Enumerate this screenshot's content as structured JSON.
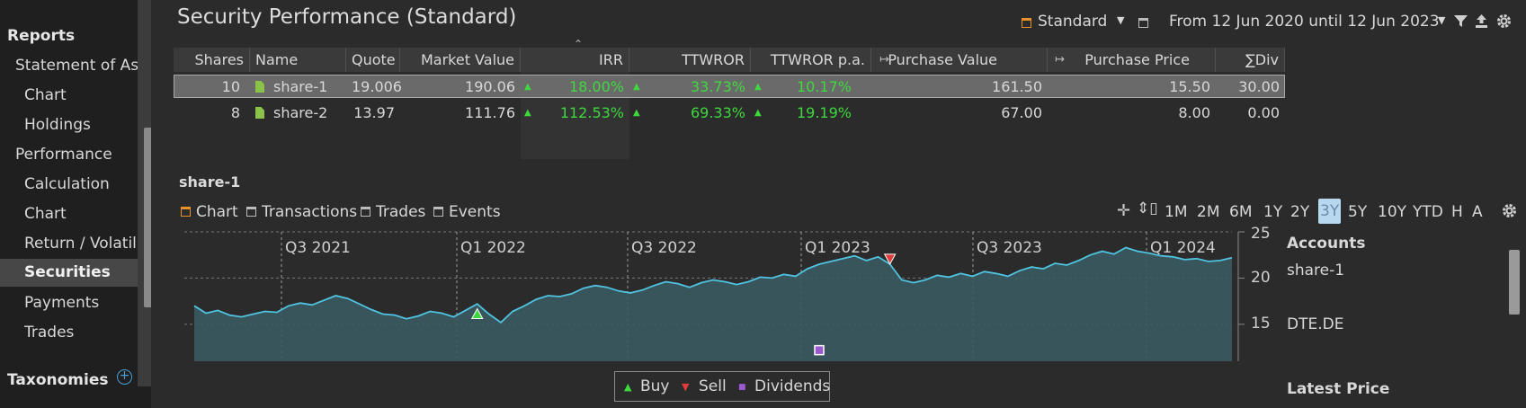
{
  "sidebar": {
    "sections": [
      {
        "label": "Reports"
      },
      {
        "label": "Taxonomies"
      }
    ],
    "items": [
      {
        "label": "Statement of Assets"
      },
      {
        "label": "Chart"
      },
      {
        "label": "Holdings"
      },
      {
        "label": "Performance"
      },
      {
        "label": "Calculation"
      },
      {
        "label": "Chart"
      },
      {
        "label": "Return / Volatility"
      },
      {
        "label": "Securities"
      },
      {
        "label": "Payments"
      },
      {
        "label": "Trades"
      }
    ],
    "add_icon": "+"
  },
  "header": {
    "title": "Security Performance (Standard)",
    "view_name": "Standard",
    "date_range": "From 12 Jun 2020 until 12 Jun 2023"
  },
  "table": {
    "columns": [
      "Shares",
      "Name",
      "Quote",
      "Market Value",
      "IRR",
      "TTWROR",
      "TTWROR p.a.",
      "Purchase Value",
      "Purchase Price",
      "∑Div"
    ],
    "rows": [
      {
        "shares": "10",
        "name": "share-1",
        "quote": "19.006",
        "market_value": "190.06",
        "irr": "18.00%",
        "ttwror": "33.73%",
        "ttwror_pa": "10.17%",
        "purchase_value": "161.50",
        "purchase_price": "15.50",
        "div": "30.00"
      },
      {
        "shares": "8",
        "name": "share-2",
        "quote": "13.97",
        "market_value": "111.76",
        "irr": "112.53%",
        "ttwror": "69.33%",
        "ttwror_pa": "19.19%",
        "purchase_value": "67.00",
        "purchase_price": "8.00",
        "div": "0.00"
      }
    ]
  },
  "detail": {
    "title": "share-1",
    "tabs": [
      "Chart",
      "Transactions",
      "Trades",
      "Events"
    ],
    "periods": [
      "1M",
      "2M",
      "6M",
      "1Y",
      "2Y",
      "3Y",
      "5Y",
      "10Y",
      "YTD",
      "H",
      "A"
    ],
    "active_period": "3Y",
    "side_labels": {
      "accounts": "Accounts",
      "share": "share-1",
      "security": "DTE.DE",
      "latest_price": "Latest Price"
    }
  },
  "chart_data": {
    "type": "area",
    "x_labels": [
      "Q3 2021",
      "Q1 2022",
      "Q3 2022",
      "Q1 2023",
      "Q3 2023",
      "Q1 2024"
    ],
    "y_ticks": [
      25,
      20,
      15
    ],
    "ylim": [
      11,
      25
    ],
    "grid": true,
    "line_color": "#4fc3e0",
    "fill_color": "#3a5a60",
    "values": [
      17.0,
      16.2,
      16.5,
      16.0,
      15.8,
      16.1,
      16.4,
      16.3,
      17.0,
      17.3,
      17.1,
      17.6,
      18.1,
      17.8,
      17.2,
      16.6,
      16.1,
      16.0,
      15.6,
      15.9,
      16.4,
      16.2,
      15.8,
      16.5,
      17.2,
      16.1,
      15.2,
      16.4,
      17.0,
      17.7,
      18.1,
      18.0,
      18.3,
      18.9,
      19.2,
      19.0,
      18.6,
      18.4,
      18.7,
      19.2,
      19.6,
      19.4,
      19.0,
      19.5,
      19.8,
      19.6,
      19.3,
      19.6,
      20.1,
      20.0,
      20.4,
      20.2,
      21.0,
      21.5,
      21.8,
      22.1,
      22.4,
      21.9,
      22.3,
      21.5,
      19.8,
      19.5,
      19.8,
      20.3,
      20.1,
      20.5,
      20.2,
      20.7,
      20.5,
      20.2,
      20.8,
      21.2,
      21.0,
      21.6,
      21.4,
      21.9,
      22.5,
      22.9,
      22.6,
      23.3,
      22.9,
      22.7,
      22.4,
      22.3,
      22.0,
      22.1,
      21.8,
      21.9,
      22.2
    ],
    "events": [
      {
        "type": "buy",
        "x_index": 24,
        "y": 16.1
      },
      {
        "type": "sell",
        "x_index": 59,
        "y": 22.1
      },
      {
        "type": "dividend",
        "x_index": 53,
        "y": 12.2
      }
    ],
    "legend": [
      "Buy",
      "Sell",
      "Dividends"
    ],
    "legend_colors": {
      "buy": "#3ed93e",
      "sell": "#e03c3c",
      "dividends": "#9b59d0"
    }
  }
}
